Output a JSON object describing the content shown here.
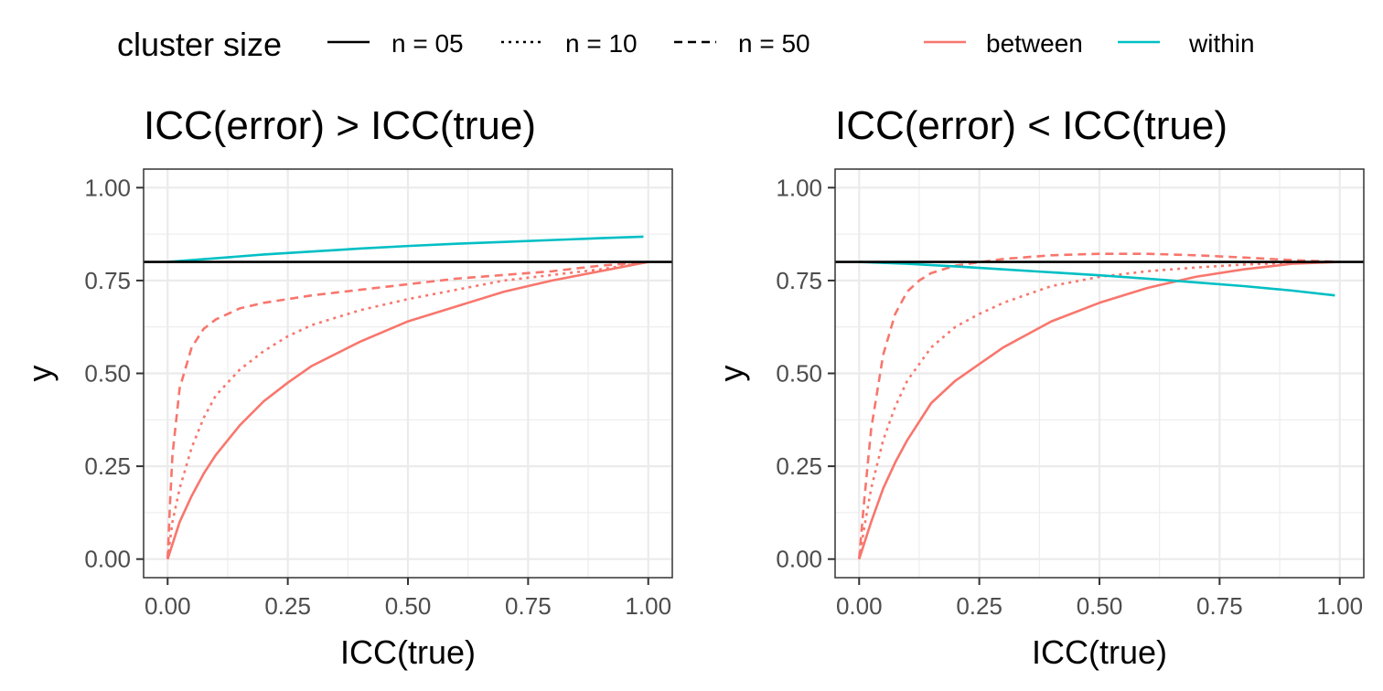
{
  "legend": {
    "linetype_title": "cluster size",
    "linetype_items": [
      {
        "label": "n = 05",
        "dash": "solid"
      },
      {
        "label": "n = 10",
        "dash": "dotted"
      },
      {
        "label": "n = 50",
        "dash": "dashed"
      }
    ],
    "colour_items": [
      {
        "label": "between",
        "color": "#F8766D"
      },
      {
        "label": "within",
        "color": "#00BFC4"
      }
    ]
  },
  "chart_data": [
    {
      "type": "line",
      "title": "ICC(error) > ICC(true)",
      "xlabel": "ICC(true)",
      "ylabel": "y",
      "xlim": [
        -0.05,
        1.05
      ],
      "ylim": [
        -0.05,
        1.05
      ],
      "x_ticks": [
        "0.00",
        "0.25",
        "0.50",
        "0.75",
        "1.00"
      ],
      "y_ticks": [
        "0.00",
        "0.25",
        "0.50",
        "0.75",
        "1.00"
      ],
      "grid": true,
      "hline": 0.8,
      "series": [
        {
          "group": "between",
          "cluster": "n = 05",
          "x": [
            0.0,
            0.01,
            0.025,
            0.05,
            0.075,
            0.1,
            0.15,
            0.2,
            0.25,
            0.3,
            0.4,
            0.5,
            0.6,
            0.7,
            0.8,
            0.9,
            1.0
          ],
          "y": [
            0.0,
            0.04,
            0.1,
            0.17,
            0.23,
            0.28,
            0.36,
            0.425,
            0.475,
            0.52,
            0.585,
            0.64,
            0.68,
            0.72,
            0.75,
            0.775,
            0.8
          ]
        },
        {
          "group": "between",
          "cluster": "n = 10",
          "x": [
            0.0,
            0.01,
            0.025,
            0.05,
            0.075,
            0.1,
            0.15,
            0.2,
            0.25,
            0.3,
            0.4,
            0.5,
            0.6,
            0.7,
            0.8,
            0.9,
            1.0
          ],
          "y": [
            0.0,
            0.1,
            0.19,
            0.3,
            0.38,
            0.44,
            0.51,
            0.56,
            0.6,
            0.63,
            0.67,
            0.7,
            0.725,
            0.75,
            0.765,
            0.78,
            0.8
          ]
        },
        {
          "group": "between",
          "cluster": "n = 50",
          "x": [
            0.0,
            0.005,
            0.01,
            0.025,
            0.05,
            0.075,
            0.1,
            0.15,
            0.2,
            0.25,
            0.3,
            0.4,
            0.5,
            0.6,
            0.7,
            0.8,
            0.9,
            1.0
          ],
          "y": [
            0.0,
            0.15,
            0.28,
            0.46,
            0.57,
            0.62,
            0.645,
            0.675,
            0.69,
            0.7,
            0.71,
            0.725,
            0.74,
            0.755,
            0.765,
            0.775,
            0.79,
            0.8
          ]
        },
        {
          "group": "within",
          "cluster": "n = 05",
          "x": [
            0.0,
            0.1,
            0.2,
            0.3,
            0.4,
            0.5,
            0.6,
            0.7,
            0.8,
            0.9,
            0.99
          ],
          "y": [
            0.8,
            0.81,
            0.82,
            0.828,
            0.836,
            0.843,
            0.849,
            0.854,
            0.859,
            0.864,
            0.868
          ]
        }
      ]
    },
    {
      "type": "line",
      "title": "ICC(error) < ICC(true)",
      "xlabel": "ICC(true)",
      "ylabel": "y",
      "xlim": [
        -0.05,
        1.05
      ],
      "ylim": [
        -0.05,
        1.05
      ],
      "x_ticks": [
        "0.00",
        "0.25",
        "0.50",
        "0.75",
        "1.00"
      ],
      "y_ticks": [
        "0.00",
        "0.25",
        "0.50",
        "0.75",
        "1.00"
      ],
      "grid": true,
      "hline": 0.8,
      "series": [
        {
          "group": "between",
          "cluster": "n = 05",
          "x": [
            0.0,
            0.025,
            0.05,
            0.075,
            0.1,
            0.15,
            0.2,
            0.25,
            0.3,
            0.4,
            0.5,
            0.6,
            0.7,
            0.8,
            0.9,
            1.0
          ],
          "y": [
            0.0,
            0.1,
            0.19,
            0.26,
            0.32,
            0.42,
            0.48,
            0.525,
            0.57,
            0.64,
            0.69,
            0.73,
            0.76,
            0.78,
            0.795,
            0.8
          ]
        },
        {
          "group": "between",
          "cluster": "n = 10",
          "x": [
            0.0,
            0.01,
            0.025,
            0.05,
            0.075,
            0.1,
            0.15,
            0.2,
            0.25,
            0.3,
            0.4,
            0.5,
            0.6,
            0.7,
            0.8,
            0.9,
            1.0
          ],
          "y": [
            0.0,
            0.08,
            0.19,
            0.32,
            0.41,
            0.48,
            0.57,
            0.625,
            0.66,
            0.69,
            0.735,
            0.76,
            0.775,
            0.785,
            0.793,
            0.798,
            0.8
          ]
        },
        {
          "group": "between",
          "cluster": "n = 50",
          "x": [
            0.0,
            0.01,
            0.025,
            0.05,
            0.075,
            0.1,
            0.125,
            0.15,
            0.2,
            0.3,
            0.4,
            0.5,
            0.6,
            0.7,
            0.8,
            0.9,
            1.0
          ],
          "y": [
            0.0,
            0.15,
            0.35,
            0.55,
            0.66,
            0.72,
            0.75,
            0.77,
            0.79,
            0.808,
            0.818,
            0.822,
            0.822,
            0.818,
            0.812,
            0.805,
            0.8
          ]
        },
        {
          "group": "within",
          "cluster": "n = 05",
          "x": [
            0.0,
            0.1,
            0.2,
            0.3,
            0.4,
            0.5,
            0.6,
            0.7,
            0.8,
            0.9,
            0.99
          ],
          "y": [
            0.8,
            0.795,
            0.788,
            0.78,
            0.772,
            0.764,
            0.755,
            0.745,
            0.735,
            0.723,
            0.71
          ]
        }
      ]
    }
  ]
}
